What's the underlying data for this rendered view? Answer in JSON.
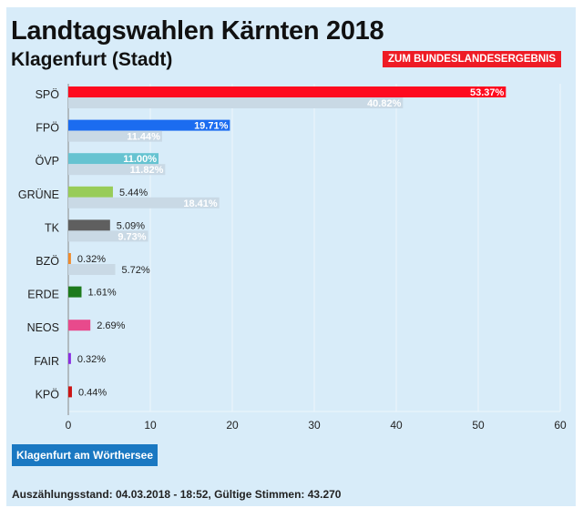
{
  "header": {
    "title": "Landtagswahlen Kärnten 2018",
    "subtitle": "Klagenfurt (Stadt)",
    "land_button": "ZUM BUNDESLANDESERGEBNIS"
  },
  "chart_data": {
    "type": "bar",
    "orientation": "horizontal",
    "categories": [
      "SPÖ",
      "FPÖ",
      "ÖVP",
      "GRÜNE",
      "TK",
      "BZÖ",
      "ERDE",
      "NEOS",
      "FAIR",
      "KPÖ"
    ],
    "series": [
      {
        "values": [
          53.37,
          19.71,
          11.0,
          5.44,
          5.09,
          0.32,
          1.61,
          2.69,
          0.32,
          0.44
        ],
        "labels": [
          "53.37%",
          "19.71%",
          "11.00%",
          "5.44%",
          "5.09%",
          "0.32%",
          "1.61%",
          "2.69%",
          "0.32%",
          "0.44%"
        ],
        "colors": [
          "#fe0b1f",
          "#1b6cf0",
          "#66c3d1",
          "#98cc58",
          "#5f5f5f",
          "#f08a2a",
          "#1d7a1d",
          "#e84a8c",
          "#8a2be2",
          "#cc1414"
        ]
      },
      {
        "values": [
          40.82,
          11.44,
          11.82,
          18.41,
          9.73,
          5.72,
          null,
          null,
          null,
          null
        ],
        "labels": [
          "40.82%",
          "11.44%",
          "11.82%",
          "18.41%",
          "9.73%",
          "5.72%",
          null,
          null,
          null,
          null
        ],
        "color": "#c9d9e5"
      }
    ],
    "xlim": [
      0,
      60
    ],
    "xticks": [
      "0",
      "10",
      "20",
      "30",
      "40",
      "50",
      "60"
    ],
    "grid": true,
    "legend": "none"
  },
  "city_button": "Klagenfurt am Wörthersee",
  "footer": "Auszählungsstand: 04.03.2018 - 18:52, Gültige Stimmen: 43.270"
}
